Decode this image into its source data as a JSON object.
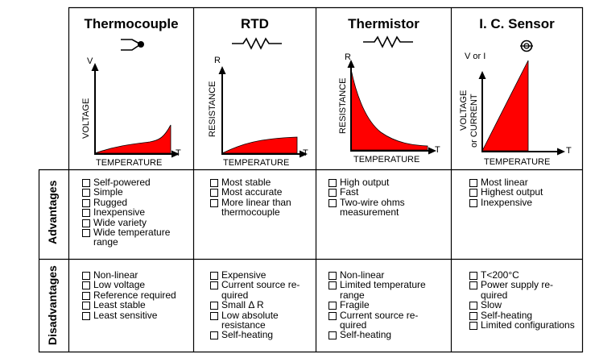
{
  "columns": [
    {
      "id": "thermocouple",
      "title": "Thermocouple",
      "y_axis_letter": "V",
      "y_axis_label": "VOLTAGE",
      "x_axis_label": "TEMPERATURE",
      "x_axis_letter": "T",
      "advantages": [
        [
          "Self-powered"
        ],
        [
          "Simple"
        ],
        [
          "Rugged"
        ],
        [
          "Inexpensive"
        ],
        [
          "Wide variety"
        ],
        [
          "Wide temperature",
          "range"
        ]
      ],
      "disadvantages": [
        [
          "Non-linear"
        ],
        [
          "Low voltage"
        ],
        [
          "Reference required"
        ],
        [
          "Least stable"
        ],
        [
          "Least sensitive"
        ]
      ]
    },
    {
      "id": "rtd",
      "title": "RTD",
      "y_axis_letter": "R",
      "y_axis_label": "RESISTANCE",
      "x_axis_label": "TEMPERATURE",
      "x_axis_letter": "T",
      "advantages": [
        [
          "Most stable"
        ],
        [
          "Most accurate"
        ],
        [
          "More linear than",
          "thermocouple"
        ]
      ],
      "disadvantages": [
        [
          "Expensive"
        ],
        [
          "Current source re-",
          "quired"
        ],
        [
          "Small Δ R"
        ],
        [
          "Low absolute",
          "resistance"
        ],
        [
          "Self-heating"
        ]
      ]
    },
    {
      "id": "thermistor",
      "title": "Thermistor",
      "y_axis_letter": "R",
      "y_axis_label": "RESISTANCE",
      "x_axis_label": "TEMPERATURE",
      "x_axis_letter": "T",
      "advantages": [
        [
          "High output"
        ],
        [
          "Fast"
        ],
        [
          "Two-wire ohms",
          "measurement"
        ]
      ],
      "disadvantages": [
        [
          "Non-linear"
        ],
        [
          "Limited temperature",
          "range"
        ],
        [
          "Fragile"
        ],
        [
          "Current source re-",
          "quired"
        ],
        [
          "Self-heating"
        ]
      ]
    },
    {
      "id": "ic_sensor",
      "title": "I. C. Sensor",
      "y_axis_letter": "V or I",
      "y_axis_label_line1": "VOLTAGE",
      "y_axis_label_line2": "or CURRENT",
      "x_axis_label": "TEMPERATURE",
      "x_axis_letter": "T",
      "advantages": [
        [
          "Most linear"
        ],
        [
          "Highest output"
        ],
        [
          "Inexpensive"
        ]
      ],
      "disadvantages": [
        [
          "T<200°C"
        ],
        [
          "Power supply re-",
          "quired"
        ],
        [
          "Slow"
        ],
        [
          "Self-heating"
        ],
        [
          "Limited configurations"
        ]
      ]
    }
  ],
  "row_labels": {
    "advantages": "Advantages",
    "disadvantages": "Disadvantages"
  },
  "colors": {
    "curve_fill": "#ff0000",
    "line": "#000000",
    "background": "#ffffff"
  },
  "symbols": [
    "thermocouple-symbol-icon",
    "resistor-symbol-icon",
    "thermistor-symbol-icon",
    "ic-sensor-symbol-icon"
  ]
}
